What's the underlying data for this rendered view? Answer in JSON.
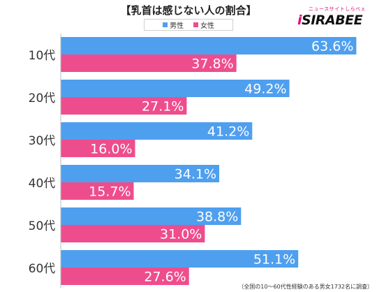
{
  "header": {
    "title": "【乳首は感じない人の割合】"
  },
  "logo": {
    "tagline": "ニュースサイトしらべぇ",
    "name_prefix": "i",
    "name": "SIRABEE"
  },
  "footnote": "（全国の10〜60代性経験のある男女1732名に調査）",
  "colors": {
    "male": "#4f9fef",
    "female": "#ee4d8d",
    "axis": "#bdbdbd"
  },
  "chart_data": {
    "type": "bar",
    "orientation": "horizontal",
    "title": "【乳首は感じない人の割合】",
    "categories": [
      "10代",
      "20代",
      "30代",
      "40代",
      "50代",
      "60代"
    ],
    "series": [
      {
        "name": "男性",
        "values": [
          63.6,
          49.2,
          41.2,
          34.1,
          38.8,
          51.1
        ]
      },
      {
        "name": "女性",
        "values": [
          37.8,
          27.1,
          16.0,
          15.7,
          31.0,
          27.6
        ]
      }
    ],
    "value_labels": [
      [
        "63.6%",
        "49.2%",
        "41.2%",
        "34.1%",
        "38.8%",
        "51.1%"
      ],
      [
        "37.8%",
        "27.1%",
        "16.0%",
        "15.7%",
        "31.0%",
        "27.6%"
      ]
    ],
    "xlim": [
      0,
      70
    ],
    "legend": "top-center",
    "grid": false
  }
}
